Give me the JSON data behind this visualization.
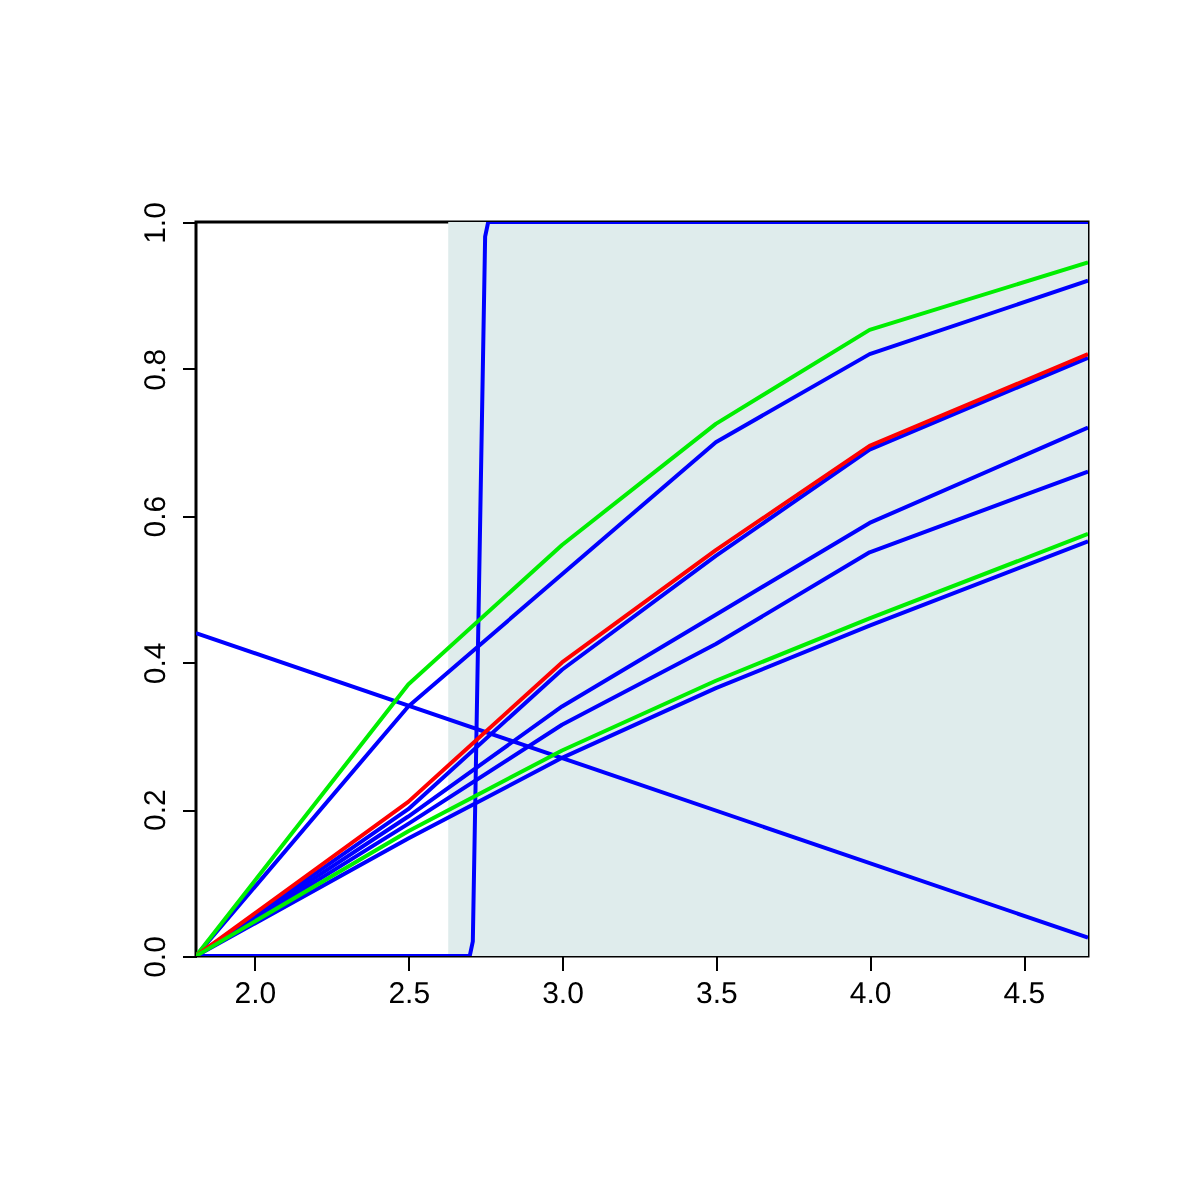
{
  "chart_data": {
    "type": "line",
    "xlim": [
      1.81,
      4.71
    ],
    "ylim": [
      0,
      1
    ],
    "xticks": [
      {
        "value": 2,
        "label": "2.0"
      },
      {
        "value": 2.5,
        "label": "2.5"
      },
      {
        "value": 3,
        "label": "3.0"
      },
      {
        "value": 3.5,
        "label": "3.5"
      },
      {
        "value": 4,
        "label": "4.0"
      },
      {
        "value": 4.5,
        "label": "4.5"
      }
    ],
    "yticks": [
      {
        "value": 0,
        "label": "0.0"
      },
      {
        "value": 0.2,
        "label": "0.2"
      },
      {
        "value": 0.4,
        "label": "0.4"
      },
      {
        "value": 0.6,
        "label": "0.6"
      },
      {
        "value": 0.8,
        "label": "0.8"
      },
      {
        "value": 1,
        "label": "1.0"
      }
    ],
    "grid": false,
    "bands": [
      {
        "axis": "x",
        "from": 2.63,
        "to": 4.71,
        "color": "#dfecec"
      }
    ],
    "series": [
      {
        "color": "#0000ff",
        "x": [
          1.81,
          2.7,
          2.71,
          2.73,
          2.75,
          2.76,
          4.71
        ],
        "values": [
          0,
          0,
          0.02,
          0.5,
          0.98,
          1,
          1
        ]
      },
      {
        "color": "#0000ff",
        "x": [
          1.81,
          4.71
        ],
        "values": [
          0.44,
          0.025
        ]
      },
      {
        "color": "#0000ff",
        "x": [
          1.81,
          2.5,
          3,
          3.5,
          4,
          4.71
        ],
        "values": [
          0,
          0.34,
          0.52,
          0.7,
          0.82,
          0.92
        ]
      },
      {
        "color": "#0000ff",
        "x": [
          1.81,
          2.5,
          3,
          3.5,
          4,
          4.71
        ],
        "values": [
          0,
          0.2,
          0.39,
          0.545,
          0.69,
          0.815
        ]
      },
      {
        "color": "#0000ff",
        "x": [
          1.81,
          2.5,
          3,
          3.5,
          4,
          4.71
        ],
        "values": [
          0,
          0.19,
          0.34,
          0.465,
          0.59,
          0.72
        ]
      },
      {
        "color": "#0000ff",
        "x": [
          1.81,
          2.5,
          3,
          3.5,
          4,
          4.71
        ],
        "values": [
          0,
          0.18,
          0.315,
          0.425,
          0.55,
          0.66
        ]
      },
      {
        "color": "#0000ff",
        "x": [
          1.81,
          2.5,
          3,
          3.5,
          4,
          4.71
        ],
        "values": [
          0,
          0.16,
          0.27,
          0.365,
          0.45,
          0.565
        ]
      },
      {
        "color": "#00ee00",
        "x": [
          1.81,
          2.5,
          3,
          3.5,
          4,
          4.71
        ],
        "values": [
          0,
          0.37,
          0.56,
          0.725,
          0.853,
          0.945
        ]
      },
      {
        "color": "#ff0000",
        "x": [
          1.81,
          2.5,
          3,
          3.5,
          4,
          4.71
        ],
        "values": [
          0,
          0.21,
          0.4,
          0.553,
          0.695,
          0.82
        ]
      },
      {
        "color": "#00ee00",
        "x": [
          1.81,
          2.5,
          3,
          3.5,
          4,
          4.71
        ],
        "values": [
          0,
          0.17,
          0.28,
          0.375,
          0.46,
          0.575
        ]
      }
    ]
  }
}
